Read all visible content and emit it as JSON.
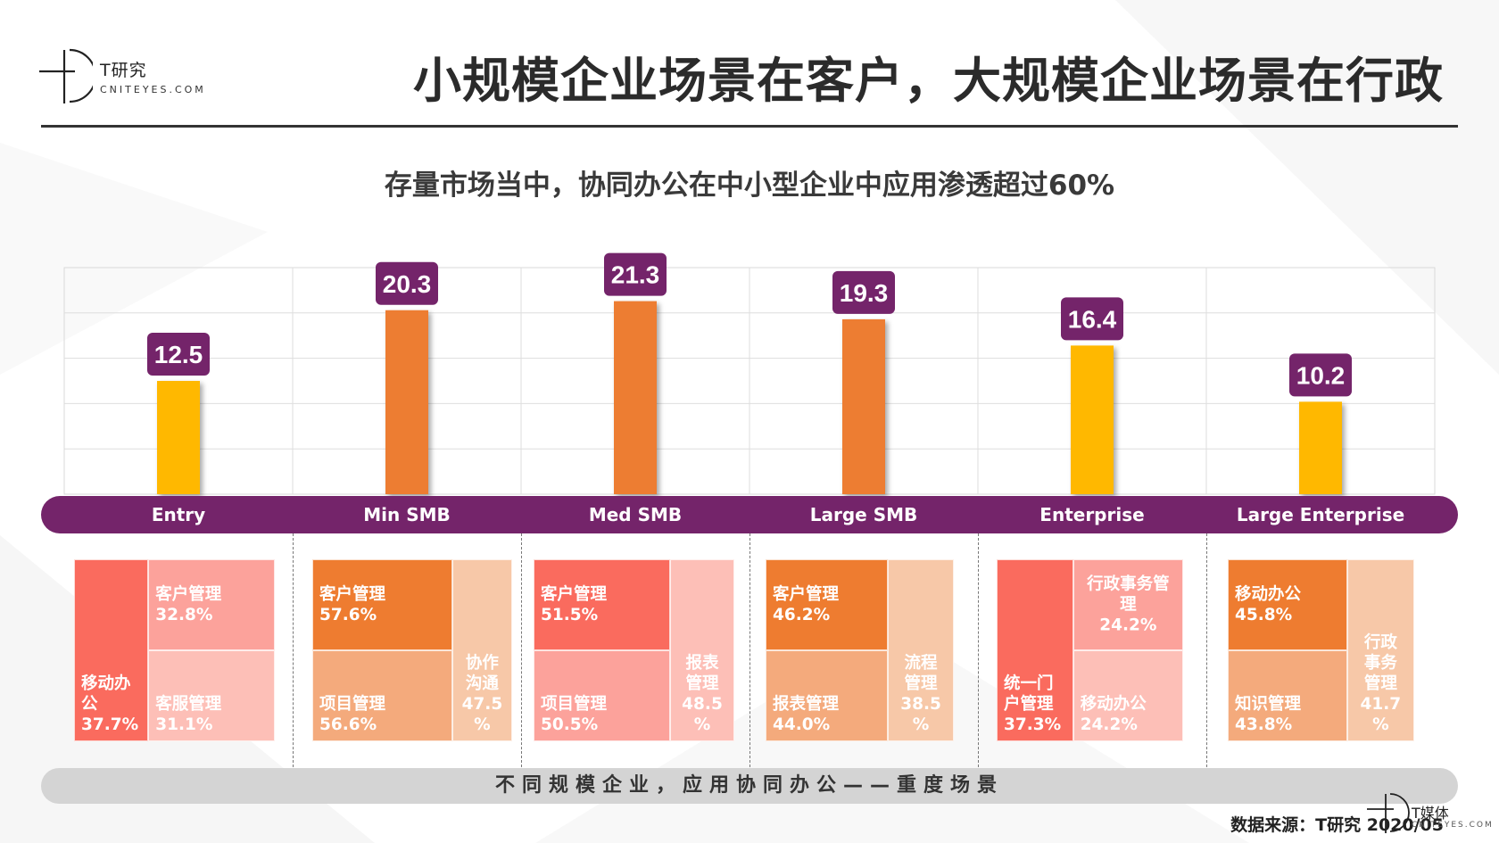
{
  "header": {
    "logo_cn": "T研究",
    "logo_en": "CNITEYES.COM",
    "title": "小规模企业场景在客户，大规模企业场景在行政",
    "subtitle": "存量市场当中，协同办公在中小型企业中应用渗透超过60%"
  },
  "colors": {
    "yellow_bar": "#ffb800",
    "orange_bar": "#ed7d31",
    "label_bg": "#74246a",
    "tile_red": "#fa6b5e",
    "tile_pink": "#fca29b",
    "tile_lightpink": "#fdbfb7",
    "tile_orange": "#ee7c30",
    "tile_peach": "#f4aa7c",
    "tile_lightpeach": "#f7c8a8"
  },
  "chart_data": {
    "type": "bar",
    "categories": [
      "Entry",
      "Min SMB",
      "Med SMB",
      "Large SMB",
      "Enterprise",
      "Large Enterprise"
    ],
    "values": [
      12.5,
      20.3,
      21.3,
      19.3,
      16.4,
      10.2
    ],
    "bar_colors": [
      "yellow",
      "orange",
      "orange",
      "orange",
      "yellow",
      "yellow"
    ],
    "data_labels": [
      "12.5",
      "20.3",
      "21.3",
      "19.3",
      "16.4",
      "10.2"
    ],
    "title": "存量市场当中，协同办公在中小型企业中应用渗透超过60%",
    "xlabel": "",
    "ylabel": "",
    "ylim": [
      0,
      25
    ],
    "grid": true
  },
  "treemaps": [
    {
      "category": "Entry",
      "tiles": [
        {
          "label": "移动办\n公",
          "value": "37.7%",
          "color": "tile_red"
        },
        {
          "label": "客户管理",
          "value": "32.8%",
          "color": "tile_pink"
        },
        {
          "label": "客服管理",
          "value": "31.1%",
          "color": "tile_lightpink"
        }
      ]
    },
    {
      "category": "Min SMB",
      "tiles": [
        {
          "label": "客户管理",
          "value": "57.6%",
          "color": "tile_orange"
        },
        {
          "label": "项目管理",
          "value": "56.6%",
          "color": "tile_peach"
        },
        {
          "label": "协作\n沟通",
          "value": "47.5\n%",
          "color": "tile_lightpeach"
        }
      ]
    },
    {
      "category": "Med SMB",
      "tiles": [
        {
          "label": "客户管理",
          "value": "51.5%",
          "color": "tile_red"
        },
        {
          "label": "项目管理",
          "value": "50.5%",
          "color": "tile_pink"
        },
        {
          "label": "报表\n管理",
          "value": "48.5\n%",
          "color": "tile_lightpink"
        }
      ]
    },
    {
      "category": "Large SMB",
      "tiles": [
        {
          "label": "客户管理",
          "value": "46.2%",
          "color": "tile_orange"
        },
        {
          "label": "报表管理",
          "value": "44.0%",
          "color": "tile_peach"
        },
        {
          "label": "流程\n管理",
          "value": "38.5\n%",
          "color": "tile_lightpeach"
        }
      ]
    },
    {
      "category": "Enterprise",
      "tiles": [
        {
          "label": "统一门\n户管理",
          "value": "37.3%",
          "color": "tile_red"
        },
        {
          "label": "行政事务管\n理",
          "value": "24.2%",
          "color": "tile_pink"
        },
        {
          "label": "移动办公",
          "value": "24.2%",
          "color": "tile_lightpink"
        }
      ]
    },
    {
      "category": "Large Enterprise",
      "tiles": [
        {
          "label": "移动办公",
          "value": "45.8%",
          "color": "tile_orange"
        },
        {
          "label": "知识管理",
          "value": "43.8%",
          "color": "tile_peach"
        },
        {
          "label": "行政\n事务\n管理",
          "value": "41.7\n%",
          "color": "tile_lightpeach"
        }
      ]
    }
  ],
  "footer": {
    "banner": "不同规模企业，应用协同办公——重度场景",
    "source": "数据来源：T研究 2020/05",
    "corner_logo_cn": "T媒体",
    "corner_logo_en": "CNITEYES.COM"
  }
}
